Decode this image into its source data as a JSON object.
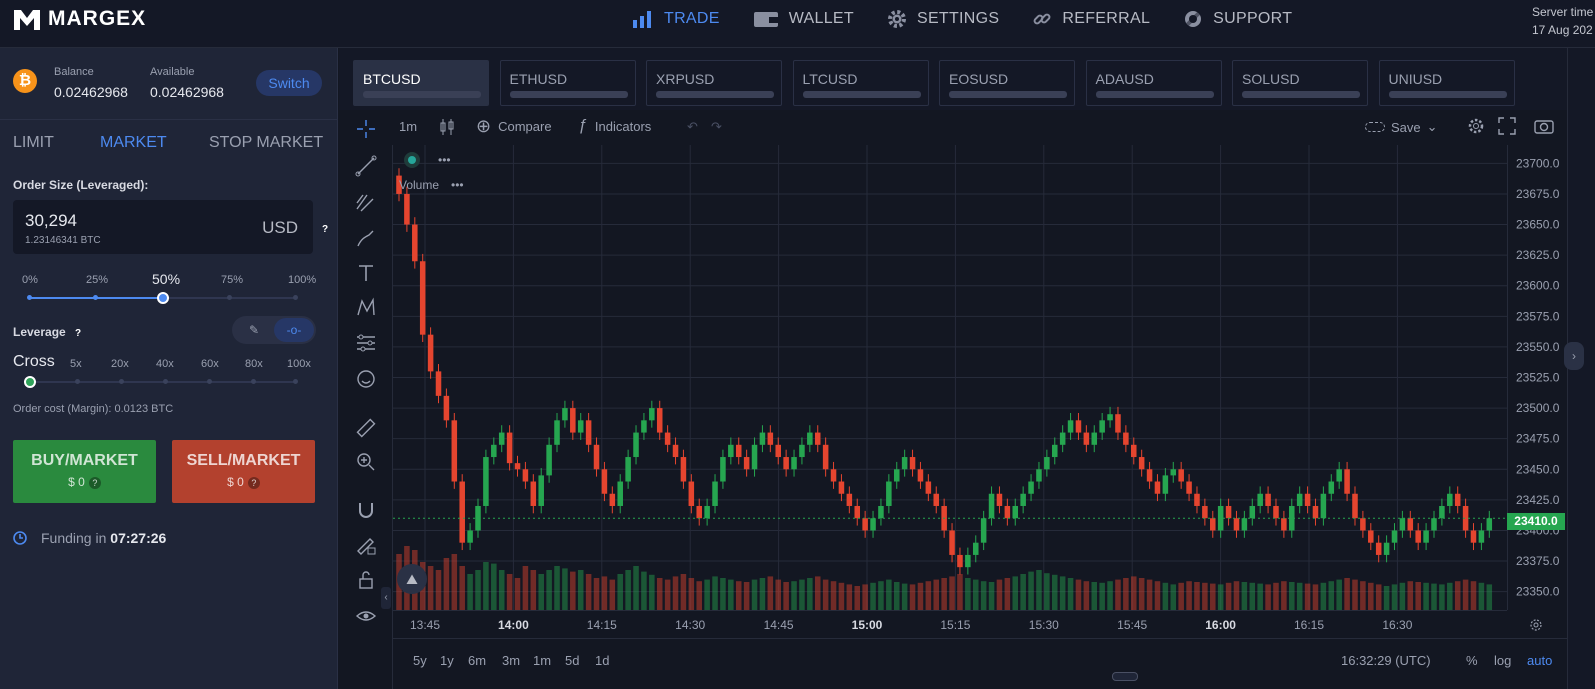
{
  "brand": {
    "name": "MARGEX"
  },
  "nav": [
    {
      "label": "TRADE",
      "icon": "bar-chart-icon",
      "active": true
    },
    {
      "label": "WALLET",
      "icon": "wallet-icon",
      "active": false
    },
    {
      "label": "SETTINGS",
      "icon": "gear-icon",
      "active": false
    },
    {
      "label": "REFERRAL",
      "icon": "link-icon",
      "active": false
    },
    {
      "label": "SUPPORT",
      "icon": "lifebuoy-icon",
      "active": false
    }
  ],
  "server": {
    "label": "Server time",
    "date": "17 Aug 202"
  },
  "account": {
    "balance_label": "Balance",
    "balance": "0.02462968",
    "available_label": "Available",
    "available": "0.02462968",
    "switch_label": "Switch"
  },
  "order_tabs": [
    {
      "label": "LIMIT",
      "active": false
    },
    {
      "label": "MARKET",
      "active": true
    },
    {
      "label": "STOP MARKET",
      "active": false
    }
  ],
  "order_size": {
    "label": "Order Size (Leveraged):",
    "value": "30,294",
    "sub": "1.23146341 BTC",
    "unit": "USD",
    "help": "?"
  },
  "size_slider": {
    "labels": [
      "0%",
      "25%",
      "50%",
      "75%",
      "100%"
    ],
    "selected": "50%",
    "value_fraction": 0.5
  },
  "leverage": {
    "label": "Leverage",
    "help": "?",
    "labels": [
      "Cross",
      "5x",
      "20x",
      "40x",
      "60x",
      "80x",
      "100x"
    ],
    "selected": "Cross"
  },
  "order_cost": "Order cost (Margin): 0.0123 BTC",
  "buy": {
    "title": "BUY/MARKET",
    "amount": "$ 0",
    "help": "?"
  },
  "sell": {
    "title": "SELL/MARKET",
    "amount": "$ 0",
    "help": "?"
  },
  "funding": {
    "label": "Funding in",
    "time": "07:27:26"
  },
  "tickers": [
    {
      "symbol": "BTCUSD",
      "active": true
    },
    {
      "symbol": "ETHUSD",
      "active": false
    },
    {
      "symbol": "XRPUSD",
      "active": false
    },
    {
      "symbol": "LTCUSD",
      "active": false
    },
    {
      "symbol": "EOSUSD",
      "active": false
    },
    {
      "symbol": "ADAUSD",
      "active": false
    },
    {
      "symbol": "SOLUSD",
      "active": false
    },
    {
      "symbol": "UNIUSD",
      "active": false
    }
  ],
  "chart_toolbar": {
    "interval": "1m",
    "compare": "Compare",
    "indicators": "Indicators",
    "save": "Save"
  },
  "volume_label": "Volume",
  "bottom": {
    "ranges": [
      "5y",
      "1y",
      "6m",
      "3m",
      "1m",
      "5d",
      "1d"
    ],
    "clock": "16:32:29 (UTC)",
    "pct": "%",
    "log": "log",
    "auto": "auto"
  },
  "colors": {
    "up": "#26a650",
    "down": "#e5452f",
    "accent": "#4d8af0"
  },
  "chart_data": {
    "type": "candlestick",
    "ylim": [
      23335,
      23715
    ],
    "yticks": [
      "23700.0",
      "23675.0",
      "23650.0",
      "23625.0",
      "23600.0",
      "23575.0",
      "23550.0",
      "23525.0",
      "23500.0",
      "23475.0",
      "23450.0",
      "23425.0",
      "23400.0",
      "23375.0",
      "23350.0"
    ],
    "xticks": [
      "13:45",
      "14:00",
      "14:15",
      "14:30",
      "14:45",
      "15:00",
      "15:15",
      "15:30",
      "15:45",
      "16:00",
      "16:15",
      "16:30"
    ],
    "last_price": "23410.0",
    "closes": [
      23675,
      23650,
      23620,
      23560,
      23530,
      23510,
      23490,
      23440,
      23390,
      23400,
      23420,
      23460,
      23470,
      23480,
      23455,
      23450,
      23440,
      23420,
      23445,
      23470,
      23490,
      23500,
      23480,
      23490,
      23470,
      23450,
      23430,
      23420,
      23440,
      23460,
      23480,
      23490,
      23500,
      23480,
      23470,
      23460,
      23440,
      23420,
      23410,
      23420,
      23440,
      23460,
      23470,
      23460,
      23450,
      23470,
      23480,
      23470,
      23460,
      23450,
      23460,
      23470,
      23480,
      23470,
      23450,
      23440,
      23430,
      23420,
      23410,
      23400,
      23410,
      23420,
      23440,
      23450,
      23460,
      23450,
      23440,
      23430,
      23420,
      23400,
      23380,
      23370,
      23380,
      23390,
      23410,
      23430,
      23420,
      23410,
      23420,
      23430,
      23440,
      23450,
      23460,
      23470,
      23480,
      23490,
      23480,
      23470,
      23480,
      23490,
      23495,
      23480,
      23470,
      23460,
      23450,
      23440,
      23430,
      23445,
      23450,
      23440,
      23430,
      23420,
      23410,
      23400,
      23420,
      23410,
      23400,
      23410,
      23420,
      23430,
      23420,
      23410,
      23400,
      23420,
      23430,
      23420,
      23410,
      23430,
      23440,
      23450,
      23430,
      23410,
      23400,
      23390,
      23380,
      23390,
      23400,
      23410,
      23400,
      23390,
      23400,
      23410,
      23420,
      23430,
      23420,
      23400,
      23390,
      23400,
      23410
    ],
    "volumes": [
      70,
      80,
      75,
      60,
      55,
      50,
      65,
      70,
      55,
      45,
      50,
      60,
      58,
      50,
      45,
      40,
      55,
      50,
      45,
      50,
      55,
      52,
      48,
      50,
      45,
      40,
      42,
      38,
      45,
      50,
      55,
      48,
      44,
      40,
      38,
      42,
      45,
      40,
      36,
      38,
      42,
      40,
      38,
      36,
      35,
      38,
      40,
      42,
      38,
      35,
      36,
      38,
      40,
      42,
      38,
      36,
      34,
      32,
      30,
      32,
      34,
      36,
      38,
      35,
      33,
      32,
      34,
      36,
      38,
      40,
      42,
      45,
      40,
      38,
      36,
      35,
      38,
      40,
      42,
      45,
      48,
      50,
      46,
      44,
      42,
      40,
      38,
      36,
      35,
      34,
      36,
      38,
      40,
      42,
      40,
      38,
      36,
      34,
      32,
      34,
      36,
      35,
      34,
      33,
      32,
      34,
      36,
      35,
      34,
      33,
      32,
      34,
      36,
      35,
      34,
      33,
      32,
      34,
      36,
      38,
      40,
      38,
      36,
      34,
      32,
      30,
      32,
      34,
      36,
      35,
      34,
      33,
      32,
      34,
      36,
      38,
      36,
      34,
      32
    ]
  }
}
